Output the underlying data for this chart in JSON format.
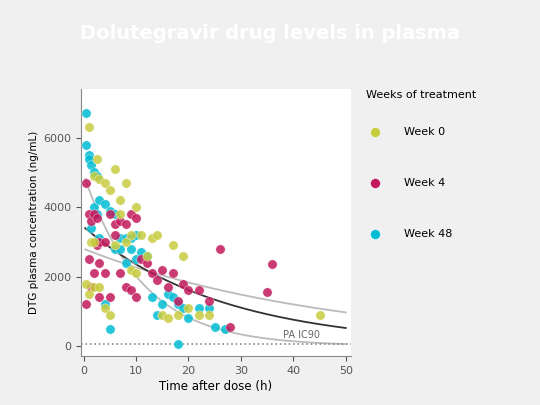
{
  "title": "Dolutegravir drug levels in plasma",
  "title_bg_color": "#696969",
  "title_text_color": "#ffffff",
  "xlabel": "Time after dose (h)",
  "ylabel": "DTG plasma concentration (ng/mL)",
  "legend_title": "Weeks of treatment",
  "xlim": [
    -0.5,
    51
  ],
  "ylim": [
    -300,
    7400
  ],
  "xticks": [
    0,
    10,
    20,
    30,
    40,
    50
  ],
  "yticks": [
    0,
    2000,
    4000,
    6000
  ],
  "ic90_y": 64,
  "ic90_label": "PA IC90",
  "bg_color": "#f0f0f0",
  "plot_bg_color": "#ffffff",
  "week0_color": "#c8cc3e",
  "week4_color": "#c2185b",
  "week48_color": "#00bcd4",
  "curve_color_light": "#bbbbbb",
  "curve_color_dark": "#333333",
  "dot_size": 45,
  "dot_alpha": 0.85,
  "week0_x": [
    0.5,
    1,
    1,
    1.5,
    2,
    2,
    2,
    2.5,
    3,
    3,
    4,
    4,
    5,
    5,
    6,
    6,
    7,
    7,
    8,
    8,
    9,
    9,
    10,
    10,
    11,
    12,
    13,
    14,
    15,
    16,
    17,
    18,
    19,
    20,
    22,
    24,
    45
  ],
  "week0_y": [
    1800,
    6300,
    1500,
    3000,
    4900,
    3000,
    1700,
    5400,
    4800,
    1700,
    4700,
    1100,
    4500,
    900,
    5100,
    2900,
    4200,
    3800,
    4700,
    3000,
    3200,
    2200,
    4000,
    2100,
    3200,
    2600,
    3100,
    3200,
    900,
    800,
    2900,
    900,
    2600,
    1100,
    900,
    900,
    900
  ],
  "week4_x": [
    0.5,
    0.5,
    1,
    1,
    1.5,
    1.5,
    2,
    2,
    2.5,
    2.5,
    3,
    3,
    3,
    4,
    4,
    5,
    5,
    6,
    6,
    7,
    7,
    8,
    8,
    9,
    9,
    10,
    10,
    11,
    12,
    13,
    14,
    15,
    16,
    17,
    18,
    19,
    20,
    22,
    24,
    26,
    28,
    35,
    36
  ],
  "week4_y": [
    4700,
    1200,
    3800,
    2500,
    3600,
    1700,
    3800,
    2100,
    3700,
    2900,
    3000,
    2400,
    1400,
    3000,
    2100,
    3800,
    1400,
    3500,
    3200,
    3600,
    2100,
    3500,
    1700,
    3800,
    1600,
    3700,
    1400,
    2500,
    2400,
    2100,
    1900,
    2200,
    1700,
    2100,
    1300,
    1800,
    1600,
    1600,
    1300,
    2800,
    550,
    1550,
    2350
  ],
  "week48_x": [
    0.5,
    0.5,
    1,
    1,
    1.5,
    1.5,
    2,
    2,
    2.5,
    2.5,
    3,
    3,
    4,
    4,
    5,
    5,
    6,
    6,
    7,
    7,
    8,
    8,
    9,
    9,
    10,
    10,
    11,
    12,
    13,
    14,
    15,
    16,
    17,
    18,
    18,
    19,
    20,
    22,
    24,
    25,
    27
  ],
  "week48_y": [
    6700,
    5800,
    5500,
    5400,
    5200,
    3400,
    5000,
    4000,
    4900,
    3800,
    4200,
    3100,
    4100,
    1200,
    3900,
    500,
    3800,
    2800,
    3100,
    2800,
    3100,
    2400,
    2800,
    3100,
    3200,
    2500,
    2700,
    2600,
    1400,
    900,
    1200,
    1500,
    1400,
    1200,
    50,
    1100,
    800,
    1100,
    1100,
    550,
    500
  ]
}
